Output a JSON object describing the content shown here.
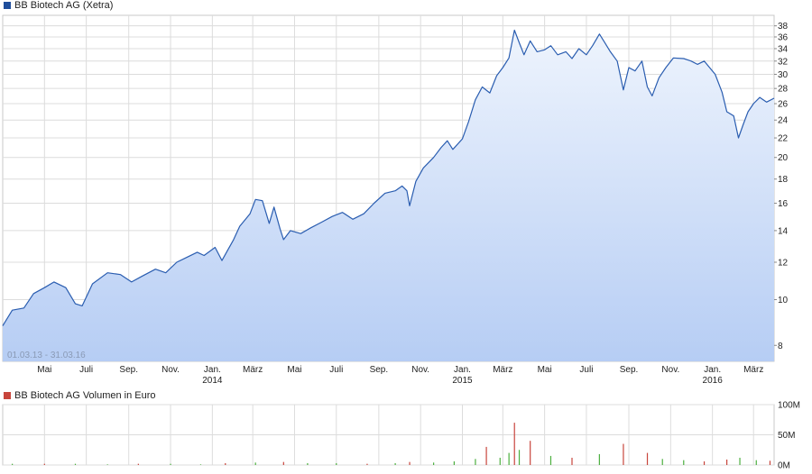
{
  "colors": {
    "price_line": "#2a5db0",
    "area_top": "#eef4fd",
    "area_bottom": "#b6cdf4",
    "grid": "#dcdcdc",
    "vol_up": "#4caf3f",
    "vol_down": "#c8453c",
    "legend_price": "#1f4e9c",
    "legend_vol": "#c8453c"
  },
  "chart_data": [
    {
      "type": "area",
      "title": "BB Biotech AG (Xetra)",
      "range_label": "01.03.13 - 31.03.16",
      "y_scale": "log",
      "ylim": [
        7.4,
        40
      ],
      "y_ticks": [
        8,
        10,
        12,
        14,
        16,
        18,
        20,
        22,
        24,
        26,
        28,
        30,
        32,
        34,
        36,
        38
      ],
      "x_ticks": [
        {
          "date": "2013-05-01",
          "label": "Mai",
          "year": ""
        },
        {
          "date": "2013-07-01",
          "label": "Juli",
          "year": ""
        },
        {
          "date": "2013-09-01",
          "label": "Sep.",
          "year": ""
        },
        {
          "date": "2013-11-01",
          "label": "Nov.",
          "year": ""
        },
        {
          "date": "2014-01-01",
          "label": "Jan.",
          "year": "2014"
        },
        {
          "date": "2014-03-01",
          "label": "März",
          "year": ""
        },
        {
          "date": "2014-05-01",
          "label": "Mai",
          "year": ""
        },
        {
          "date": "2014-07-01",
          "label": "Juli",
          "year": ""
        },
        {
          "date": "2014-09-01",
          "label": "Sep.",
          "year": ""
        },
        {
          "date": "2014-11-01",
          "label": "Nov.",
          "year": ""
        },
        {
          "date": "2015-01-01",
          "label": "Jan.",
          "year": "2015"
        },
        {
          "date": "2015-03-01",
          "label": "März",
          "year": ""
        },
        {
          "date": "2015-05-01",
          "label": "Mai",
          "year": ""
        },
        {
          "date": "2015-07-01",
          "label": "Juli",
          "year": ""
        },
        {
          "date": "2015-09-01",
          "label": "Sep.",
          "year": ""
        },
        {
          "date": "2015-11-01",
          "label": "Nov.",
          "year": ""
        },
        {
          "date": "2016-01-01",
          "label": "Jan.",
          "year": "2016"
        },
        {
          "date": "2016-03-01",
          "label": "März",
          "year": ""
        }
      ],
      "x_range": [
        "2013-03-01",
        "2016-03-31"
      ],
      "series": [
        {
          "name": "BB Biotech AG (Xetra)",
          "points": [
            [
              "2013-03-01",
              8.8
            ],
            [
              "2013-03-15",
              9.5
            ],
            [
              "2013-04-01",
              9.6
            ],
            [
              "2013-04-15",
              10.3
            ],
            [
              "2013-05-01",
              10.6
            ],
            [
              "2013-05-15",
              10.9
            ],
            [
              "2013-06-01",
              10.6
            ],
            [
              "2013-06-15",
              9.8
            ],
            [
              "2013-06-25",
              9.7
            ],
            [
              "2013-07-10",
              10.8
            ],
            [
              "2013-08-01",
              11.4
            ],
            [
              "2013-08-20",
              11.3
            ],
            [
              "2013-09-05",
              10.9
            ],
            [
              "2013-09-20",
              11.2
            ],
            [
              "2013-10-10",
              11.6
            ],
            [
              "2013-10-25",
              11.4
            ],
            [
              "2013-11-10",
              12.0
            ],
            [
              "2013-11-25",
              12.3
            ],
            [
              "2013-12-10",
              12.6
            ],
            [
              "2013-12-20",
              12.4
            ],
            [
              "2014-01-05",
              12.9
            ],
            [
              "2014-01-15",
              12.1
            ],
            [
              "2014-02-01",
              13.4
            ],
            [
              "2014-02-10",
              14.3
            ],
            [
              "2014-02-25",
              15.2
            ],
            [
              "2014-03-05",
              16.3
            ],
            [
              "2014-03-15",
              16.2
            ],
            [
              "2014-03-25",
              14.5
            ],
            [
              "2014-04-01",
              15.7
            ],
            [
              "2014-04-10",
              14.1
            ],
            [
              "2014-04-15",
              13.4
            ],
            [
              "2014-04-25",
              14.0
            ],
            [
              "2014-05-10",
              13.8
            ],
            [
              "2014-05-25",
              14.2
            ],
            [
              "2014-06-10",
              14.6
            ],
            [
              "2014-06-25",
              15.0
            ],
            [
              "2014-07-10",
              15.3
            ],
            [
              "2014-07-25",
              14.8
            ],
            [
              "2014-08-10",
              15.2
            ],
            [
              "2014-08-25",
              16.0
            ],
            [
              "2014-09-10",
              16.8
            ],
            [
              "2014-09-25",
              17.0
            ],
            [
              "2014-10-05",
              17.4
            ],
            [
              "2014-10-12",
              17.0
            ],
            [
              "2014-10-16",
              15.8
            ],
            [
              "2014-10-25",
              17.8
            ],
            [
              "2014-11-05",
              19.0
            ],
            [
              "2014-11-20",
              20.0
            ],
            [
              "2014-12-01",
              21.0
            ],
            [
              "2014-12-10",
              21.7
            ],
            [
              "2014-12-18",
              20.8
            ],
            [
              "2015-01-01",
              21.9
            ],
            [
              "2015-01-10",
              23.8
            ],
            [
              "2015-01-20",
              26.5
            ],
            [
              "2015-01-30",
              28.2
            ],
            [
              "2015-02-10",
              27.4
            ],
            [
              "2015-02-20",
              29.8
            ],
            [
              "2015-03-01",
              31.0
            ],
            [
              "2015-03-10",
              32.5
            ],
            [
              "2015-03-18",
              37.2
            ],
            [
              "2015-03-25",
              35.0
            ],
            [
              "2015-04-01",
              33.0
            ],
            [
              "2015-04-10",
              35.3
            ],
            [
              "2015-04-20",
              33.5
            ],
            [
              "2015-05-01",
              33.8
            ],
            [
              "2015-05-10",
              34.5
            ],
            [
              "2015-05-20",
              33.0
            ],
            [
              "2015-06-01",
              33.5
            ],
            [
              "2015-06-10",
              32.4
            ],
            [
              "2015-06-20",
              34.0
            ],
            [
              "2015-07-01",
              33.0
            ],
            [
              "2015-07-10",
              34.5
            ],
            [
              "2015-07-20",
              36.5
            ],
            [
              "2015-07-28",
              35.0
            ],
            [
              "2015-08-05",
              33.5
            ],
            [
              "2015-08-15",
              32.0
            ],
            [
              "2015-08-24",
              27.8
            ],
            [
              "2015-09-01",
              31.0
            ],
            [
              "2015-09-10",
              30.5
            ],
            [
              "2015-09-20",
              32.0
            ],
            [
              "2015-09-28",
              28.2
            ],
            [
              "2015-10-05",
              27.0
            ],
            [
              "2015-10-15",
              29.5
            ],
            [
              "2015-10-25",
              31.0
            ],
            [
              "2015-11-05",
              32.5
            ],
            [
              "2015-11-20",
              32.4
            ],
            [
              "2015-12-01",
              32.0
            ],
            [
              "2015-12-10",
              31.5
            ],
            [
              "2015-12-20",
              32.0
            ],
            [
              "2016-01-05",
              30.0
            ],
            [
              "2016-01-15",
              27.5
            ],
            [
              "2016-01-22",
              25.0
            ],
            [
              "2016-02-01",
              24.5
            ],
            [
              "2016-02-08",
              22.0
            ],
            [
              "2016-02-15",
              23.5
            ],
            [
              "2016-02-22",
              25.0
            ],
            [
              "2016-03-01",
              26.0
            ],
            [
              "2016-03-10",
              26.8
            ],
            [
              "2016-03-20",
              26.2
            ],
            [
              "2016-03-31",
              26.7
            ]
          ]
        }
      ]
    },
    {
      "type": "bar",
      "title": "BB Biotech AG Volumen in Euro",
      "ylim": [
        0,
        100
      ],
      "y_ticks": [
        {
          "value": 0,
          "label": "0M"
        },
        {
          "value": 50,
          "label": "50M"
        },
        {
          "value": 100,
          "label": "100M"
        }
      ],
      "bars": [
        [
          "2013-03-15",
          2,
          0
        ],
        [
          "2013-05-01",
          2,
          1
        ],
        [
          "2013-06-15",
          2,
          0
        ],
        [
          "2013-08-01",
          1,
          0
        ],
        [
          "2013-09-15",
          2,
          1
        ],
        [
          "2013-11-01",
          2,
          0
        ],
        [
          "2013-12-15",
          1,
          0
        ],
        [
          "2014-01-20",
          3,
          1
        ],
        [
          "2014-03-05",
          4,
          0
        ],
        [
          "2014-04-15",
          5,
          1
        ],
        [
          "2014-05-20",
          3,
          0
        ],
        [
          "2014-07-01",
          3,
          0
        ],
        [
          "2014-08-15",
          2,
          1
        ],
        [
          "2014-09-25",
          3,
          0
        ],
        [
          "2014-10-16",
          5,
          1
        ],
        [
          "2014-11-20",
          4,
          0
        ],
        [
          "2014-12-20",
          6,
          0
        ],
        [
          "2015-01-20",
          10,
          0
        ],
        [
          "2015-02-05",
          30,
          1
        ],
        [
          "2015-02-25",
          12,
          0
        ],
        [
          "2015-03-10",
          20,
          0
        ],
        [
          "2015-03-18",
          70,
          1
        ],
        [
          "2015-03-25",
          25,
          0
        ],
        [
          "2015-04-10",
          40,
          1
        ],
        [
          "2015-05-10",
          15,
          0
        ],
        [
          "2015-06-10",
          12,
          1
        ],
        [
          "2015-07-20",
          18,
          0
        ],
        [
          "2015-08-24",
          35,
          1
        ],
        [
          "2015-09-28",
          20,
          1
        ],
        [
          "2015-10-20",
          10,
          0
        ],
        [
          "2015-11-20",
          8,
          0
        ],
        [
          "2015-12-20",
          6,
          1
        ],
        [
          "2016-01-22",
          9,
          1
        ],
        [
          "2016-02-10",
          12,
          0
        ],
        [
          "2016-03-05",
          8,
          0
        ],
        [
          "2016-03-25",
          7,
          1
        ]
      ]
    }
  ]
}
